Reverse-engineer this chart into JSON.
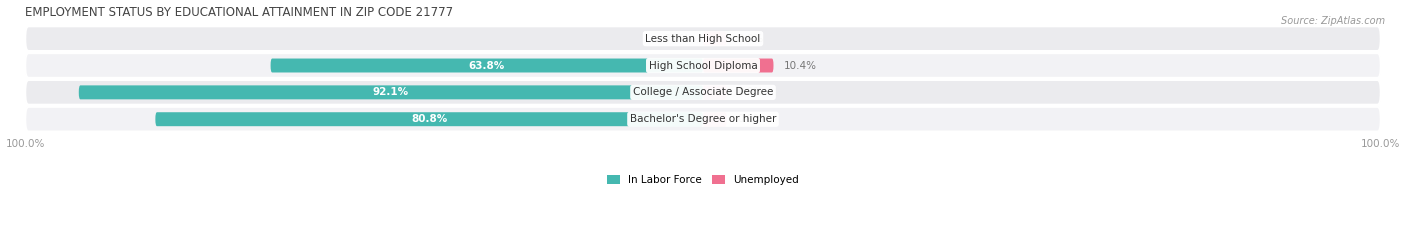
{
  "title": "EMPLOYMENT STATUS BY EDUCATIONAL ATTAINMENT IN ZIP CODE 21777",
  "source": "Source: ZipAtlas.com",
  "categories": [
    "Less than High School",
    "High School Diploma",
    "College / Associate Degree",
    "Bachelor's Degree or higher"
  ],
  "in_labor_force": [
    0.0,
    63.8,
    92.1,
    80.8
  ],
  "unemployed": [
    0.0,
    10.4,
    0.0,
    0.0
  ],
  "labor_color": "#45B8B0",
  "unemployed_color": "#F07090",
  "unemployed_color_light": "#F4A0B8",
  "row_bg_even": "#f0f0f2",
  "row_bg_odd": "#e6e6ea",
  "label_color": "#777777",
  "title_color": "#444444",
  "axis_label_color": "#999999",
  "max_val": 100.0,
  "figsize": [
    14.06,
    2.33
  ],
  "dpi": 100,
  "legend_labor_label": "In Labor Force",
  "legend_unemp_label": "Unemployed"
}
